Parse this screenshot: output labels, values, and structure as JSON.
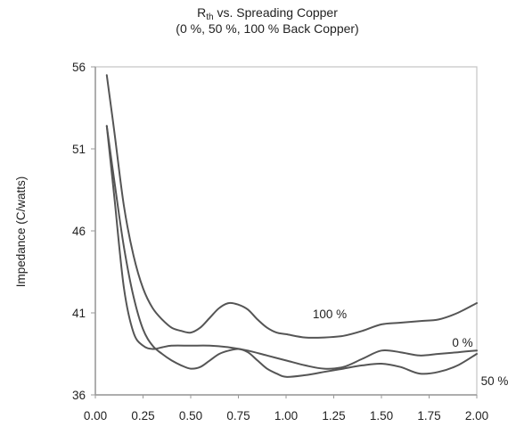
{
  "chart_data": {
    "type": "line",
    "title": {
      "main": "R",
      "subscript": "th",
      "rest": " vs. Spreading Copper",
      "subtitle": "(0 %, 50 %, 100 % Back Copper)"
    },
    "xlabel": "",
    "ylabel": "Impedance (C/watts)",
    "xlim": [
      0,
      2
    ],
    "ylim": [
      36,
      56
    ],
    "x_ticks": [
      "0.00",
      "0.25",
      "0.50",
      "0.75",
      "1.00",
      "1.25",
      "1.50",
      "1.75",
      "2.00"
    ],
    "y_ticks": [
      "36",
      "41",
      "46",
      "51",
      "56"
    ],
    "grid": false,
    "series": [
      {
        "name": "100 %",
        "points": [
          [
            0.06,
            55.5
          ],
          [
            0.1,
            52.0
          ],
          [
            0.15,
            47.5
          ],
          [
            0.2,
            44.5
          ],
          [
            0.25,
            42.5
          ],
          [
            0.3,
            41.3
          ],
          [
            0.35,
            40.6
          ],
          [
            0.4,
            40.1
          ],
          [
            0.45,
            39.9
          ],
          [
            0.5,
            39.8
          ],
          [
            0.55,
            40.1
          ],
          [
            0.6,
            40.7
          ],
          [
            0.65,
            41.3
          ],
          [
            0.7,
            41.6
          ],
          [
            0.75,
            41.5
          ],
          [
            0.8,
            41.2
          ],
          [
            0.85,
            40.6
          ],
          [
            0.9,
            40.1
          ],
          [
            0.95,
            39.8
          ],
          [
            1.0,
            39.7
          ],
          [
            1.1,
            39.5
          ],
          [
            1.2,
            39.5
          ],
          [
            1.3,
            39.6
          ],
          [
            1.4,
            39.9
          ],
          [
            1.5,
            40.3
          ],
          [
            1.6,
            40.4
          ],
          [
            1.7,
            40.5
          ],
          [
            1.8,
            40.6
          ],
          [
            1.9,
            41.0
          ],
          [
            2.0,
            41.6
          ]
        ]
      },
      {
        "name": "0 %",
        "points": [
          [
            0.06,
            52.4
          ],
          [
            0.1,
            48.0
          ],
          [
            0.15,
            42.5
          ],
          [
            0.2,
            39.8
          ],
          [
            0.25,
            39.0
          ],
          [
            0.3,
            38.8
          ],
          [
            0.35,
            38.9
          ],
          [
            0.4,
            39.0
          ],
          [
            0.5,
            39.0
          ],
          [
            0.6,
            39.0
          ],
          [
            0.7,
            38.9
          ],
          [
            0.8,
            38.7
          ],
          [
            0.9,
            38.4
          ],
          [
            1.0,
            38.1
          ],
          [
            1.1,
            37.8
          ],
          [
            1.2,
            37.6
          ],
          [
            1.3,
            37.7
          ],
          [
            1.4,
            38.2
          ],
          [
            1.5,
            38.7
          ],
          [
            1.6,
            38.6
          ],
          [
            1.7,
            38.4
          ],
          [
            1.8,
            38.5
          ],
          [
            1.9,
            38.6
          ],
          [
            2.0,
            38.7
          ]
        ]
      },
      {
        "name": "50 %",
        "points": [
          [
            0.06,
            52.4
          ],
          [
            0.1,
            49.0
          ],
          [
            0.15,
            45.0
          ],
          [
            0.2,
            42.0
          ],
          [
            0.25,
            40.0
          ],
          [
            0.3,
            39.0
          ],
          [
            0.35,
            38.5
          ],
          [
            0.4,
            38.1
          ],
          [
            0.45,
            37.8
          ],
          [
            0.5,
            37.6
          ],
          [
            0.55,
            37.7
          ],
          [
            0.6,
            38.1
          ],
          [
            0.65,
            38.5
          ],
          [
            0.7,
            38.7
          ],
          [
            0.75,
            38.8
          ],
          [
            0.8,
            38.6
          ],
          [
            0.85,
            38.1
          ],
          [
            0.9,
            37.6
          ],
          [
            0.95,
            37.3
          ],
          [
            1.0,
            37.1
          ],
          [
            1.1,
            37.2
          ],
          [
            1.2,
            37.4
          ],
          [
            1.3,
            37.6
          ],
          [
            1.4,
            37.8
          ],
          [
            1.5,
            37.9
          ],
          [
            1.6,
            37.7
          ],
          [
            1.7,
            37.3
          ],
          [
            1.8,
            37.4
          ],
          [
            1.9,
            37.8
          ],
          [
            2.0,
            38.5
          ]
        ]
      }
    ]
  }
}
